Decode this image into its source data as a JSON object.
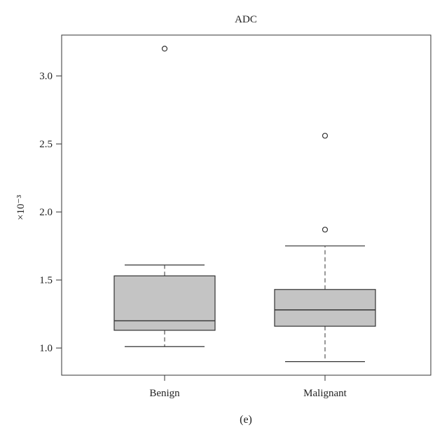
{
  "chart_data": {
    "type": "box",
    "title": "ADC",
    "ylabel": "×10⁻³",
    "caption": "(e)",
    "ylim": [
      0.8,
      3.3
    ],
    "yticks": [
      1.0,
      1.5,
      2.0,
      2.5,
      3.0
    ],
    "ytick_labels": [
      "1.0",
      "1.5",
      "2.0",
      "2.5",
      "3.0"
    ],
    "categories": [
      "Benign",
      "Malignant"
    ],
    "boxes": [
      {
        "category": "Benign",
        "whisker_low": 1.01,
        "q1": 1.13,
        "median": 1.2,
        "q3": 1.53,
        "whisker_high": 1.61,
        "outliers": [
          3.2
        ]
      },
      {
        "category": "Malignant",
        "whisker_low": 0.9,
        "q1": 1.16,
        "median": 1.28,
        "q3": 1.43,
        "whisker_high": 1.75,
        "outliers": [
          1.87,
          2.56
        ]
      }
    ],
    "colors": {
      "box_fill": "#c4c4c4",
      "stroke": "#333333"
    }
  }
}
